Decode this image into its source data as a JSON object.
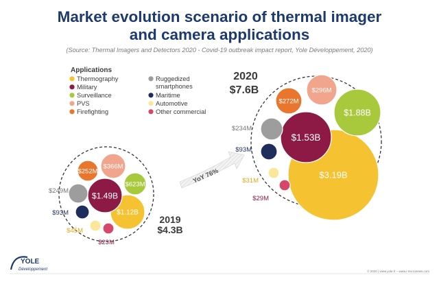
{
  "header": {
    "title_line1": "Market evolution scenario of thermal imager",
    "title_line2": "and camera applications",
    "source": "(Source: Thermal Imagers and Detectors 2020 - Covid-19 outbreak impact report, Yole Développement, 2020)"
  },
  "legend": {
    "heading": "Applications",
    "items": [
      {
        "key": "thermography",
        "label": "Thermography",
        "color": "#f5c231"
      },
      {
        "key": "military",
        "label": "Military",
        "color": "#8c1a45"
      },
      {
        "key": "surveillance",
        "label": "Surveillance",
        "color": "#a9c93c"
      },
      {
        "key": "pvs",
        "label": "PVS",
        "color": "#f1a58c"
      },
      {
        "key": "firefighting",
        "label": "Firefighting",
        "color": "#e8762d"
      },
      {
        "key": "ruggedized",
        "label": "Ruggedized",
        "label2": "smartphones",
        "color": "#9d9d9d"
      },
      {
        "key": "maritime",
        "label": "Maritime",
        "color": "#1f2d5c"
      },
      {
        "key": "automotive",
        "label": "Automotive",
        "color": "#fbe69a"
      },
      {
        "key": "other",
        "label": "Other commercial",
        "color": "#d6476c"
      }
    ]
  },
  "arrow": {
    "label": "YoY 76%"
  },
  "chart_data": {
    "type": "bubble",
    "title": "Market evolution scenario of thermal imager and camera applications",
    "unit": "$",
    "series": [
      {
        "name": "2019",
        "year_label": "2019",
        "total_label": "$4.3B",
        "total": 4.3,
        "points": [
          {
            "category": "Thermography",
            "value": 1.12,
            "label": "$1.12B"
          },
          {
            "category": "Military",
            "value": 1.49,
            "label": "$1.49B"
          },
          {
            "category": "Surveillance",
            "value": 0.623,
            "label": "$623M"
          },
          {
            "category": "PVS",
            "value": 0.366,
            "label": "$366M"
          },
          {
            "category": "Firefighting",
            "value": 0.252,
            "label": "$252M"
          },
          {
            "category": "Ruggedized smartphones",
            "value": 0.249,
            "label": "$249M"
          },
          {
            "category": "Maritime",
            "value": 0.093,
            "label": "$93M"
          },
          {
            "category": "Automotive",
            "value": 0.045,
            "label": "$45M"
          },
          {
            "category": "Other commercial",
            "value": 0.023,
            "label": "$23M"
          }
        ]
      },
      {
        "name": "2020",
        "year_label": "2020",
        "total_label": "$7.6B",
        "total": 7.6,
        "points": [
          {
            "category": "Thermography",
            "value": 3.19,
            "label": "$3.19B"
          },
          {
            "category": "Military",
            "value": 1.53,
            "label": "$1.53B"
          },
          {
            "category": "Surveillance",
            "value": 1.88,
            "label": "$1.88B"
          },
          {
            "category": "PVS",
            "value": 0.296,
            "label": "$296M"
          },
          {
            "category": "Firefighting",
            "value": 0.272,
            "label": "$272M"
          },
          {
            "category": "Ruggedized smartphones",
            "value": 0.234,
            "label": "$234M"
          },
          {
            "category": "Maritime",
            "value": 0.093,
            "label": "$93M"
          },
          {
            "category": "Automotive",
            "value": 0.031,
            "label": "$31M"
          },
          {
            "category": "Other commercial",
            "value": 0.029,
            "label": "$29M"
          }
        ]
      }
    ],
    "annotation": "YoY 76%"
  },
  "logo": {
    "name": "YOLE",
    "sub": "Développement"
  },
  "footer": {
    "text": "© 2020 | www.yole.fr – www.i-micronews.com"
  }
}
